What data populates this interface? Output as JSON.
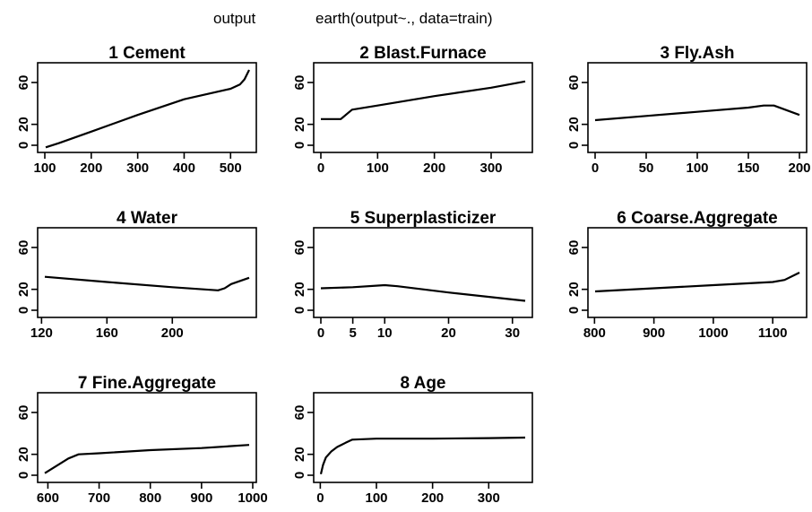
{
  "figure": {
    "title_left": "output",
    "title_right": "earth(output~., data=train)"
  },
  "chart_data": [
    {
      "type": "line",
      "title": "1  Cement",
      "xlim": [
        100,
        540
      ],
      "ylim": [
        0,
        72
      ],
      "xticks": [
        100,
        200,
        300,
        400,
        500
      ],
      "yticks": [
        0,
        20,
        60
      ],
      "series": [
        {
          "x": [
            102,
            130,
            200,
            300,
            400,
            500,
            520,
            530,
            540
          ],
          "y": [
            -2,
            2,
            13,
            29,
            44,
            54,
            58,
            63,
            72
          ]
        }
      ]
    },
    {
      "type": "line",
      "title": "2  Blast.Furnace",
      "xlim": [
        0,
        360
      ],
      "ylim": [
        0,
        72
      ],
      "xticks": [
        0,
        100,
        200,
        300
      ],
      "yticks": [
        0,
        20,
        60
      ],
      "series": [
        {
          "x": [
            0,
            35,
            55,
            100,
            200,
            300,
            360
          ],
          "y": [
            25,
            25,
            34,
            38,
            47,
            55,
            61
          ]
        }
      ]
    },
    {
      "type": "line",
      "title": "3  Fly.Ash",
      "xlim": [
        0,
        200
      ],
      "ylim": [
        0,
        72
      ],
      "xticks": [
        0,
        50,
        100,
        150,
        200
      ],
      "yticks": [
        0,
        20,
        60
      ],
      "series": [
        {
          "x": [
            0,
            50,
            100,
            150,
            165,
            175,
            200
          ],
          "y": [
            24,
            28,
            32,
            36,
            38,
            38,
            29
          ]
        }
      ]
    },
    {
      "type": "line",
      "title": "4  Water",
      "xlim": [
        122,
        247
      ],
      "ylim": [
        0,
        72
      ],
      "xticks": [
        120,
        160,
        200
      ],
      "yticks": [
        0,
        20,
        60
      ],
      "series": [
        {
          "x": [
            122,
            160,
            200,
            228,
            232,
            236,
            247
          ],
          "y": [
            32,
            27,
            22,
            19,
            21,
            25,
            31
          ]
        }
      ]
    },
    {
      "type": "line",
      "title": "5  Superplasticizer",
      "xlim": [
        0,
        32
      ],
      "ylim": [
        0,
        72
      ],
      "xticks": [
        0,
        5,
        10,
        20,
        30
      ],
      "yticks": [
        0,
        20,
        60
      ],
      "series": [
        {
          "x": [
            0,
            5,
            10,
            12,
            20,
            32
          ],
          "y": [
            21,
            22,
            24,
            23,
            17,
            9
          ]
        }
      ]
    },
    {
      "type": "line",
      "title": "6  Coarse.Aggregate",
      "xlim": [
        801,
        1145
      ],
      "ylim": [
        0,
        72
      ],
      "xticks": [
        800,
        900,
        1000,
        1100
      ],
      "yticks": [
        0,
        20,
        60
      ],
      "series": [
        {
          "x": [
            801,
            900,
            1000,
            1100,
            1120,
            1145
          ],
          "y": [
            18,
            21,
            24,
            27,
            29,
            36
          ]
        }
      ]
    },
    {
      "type": "line",
      "title": "7  Fine.Aggregate",
      "xlim": [
        594,
        993
      ],
      "ylim": [
        0,
        72
      ],
      "xticks": [
        600,
        700,
        800,
        900,
        1000
      ],
      "yticks": [
        0,
        20,
        60
      ],
      "series": [
        {
          "x": [
            594,
            640,
            660,
            700,
            800,
            900,
            993
          ],
          "y": [
            2,
            16,
            20,
            21,
            24,
            26,
            29
          ]
        }
      ]
    },
    {
      "type": "line",
      "title": "8  Age",
      "xlim": [
        1,
        365
      ],
      "ylim": [
        0,
        72
      ],
      "xticks": [
        0,
        100,
        200,
        300
      ],
      "yticks": [
        0,
        20,
        60
      ],
      "series": [
        {
          "x": [
            1,
            5,
            10,
            20,
            30,
            45,
            57,
            100,
            200,
            300,
            365
          ],
          "y": [
            1,
            10,
            17,
            23,
            27,
            31,
            34,
            35,
            35,
            35.5,
            36
          ]
        }
      ]
    }
  ]
}
